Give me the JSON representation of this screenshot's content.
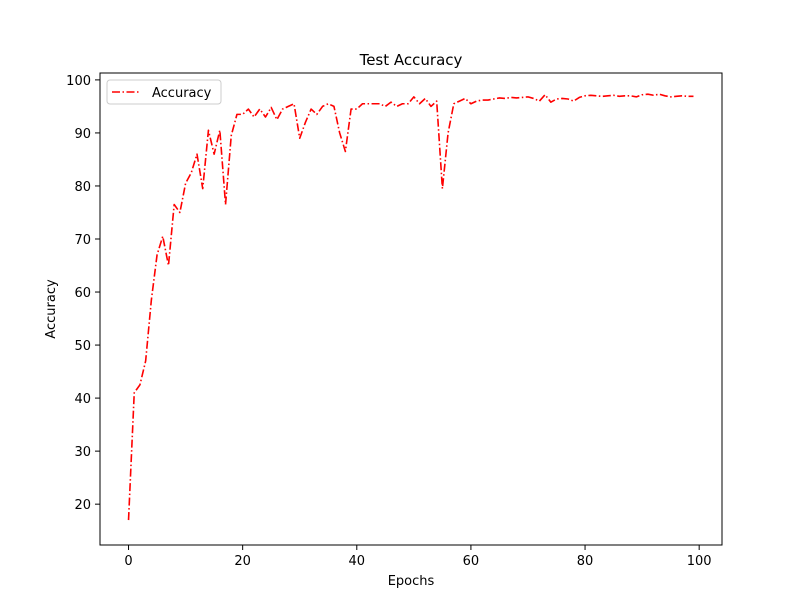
{
  "chart_data": {
    "type": "line",
    "title": "Test Accuracy",
    "xlabel": "Epochs",
    "ylabel": "Accuracy",
    "xlim": [
      -5,
      104
    ],
    "ylim": [
      12.3,
      101.3
    ],
    "xticks": [
      0,
      20,
      40,
      60,
      80,
      100
    ],
    "yticks": [
      20,
      30,
      40,
      50,
      60,
      70,
      80,
      90,
      100
    ],
    "grid": false,
    "legend_position": "upper left",
    "series": [
      {
        "name": "Accuracy",
        "color": "#ff0000",
        "linestyle": "dashdot",
        "x": [
          0,
          1,
          2,
          3,
          4,
          5,
          6,
          7,
          8,
          9,
          10,
          11,
          12,
          13,
          14,
          15,
          16,
          17,
          18,
          19,
          20,
          21,
          22,
          23,
          24,
          25,
          26,
          27,
          28,
          29,
          30,
          31,
          32,
          33,
          34,
          35,
          36,
          37,
          38,
          39,
          40,
          41,
          42,
          43,
          44,
          45,
          46,
          47,
          48,
          49,
          50,
          51,
          52,
          53,
          54,
          55,
          56,
          57,
          58,
          59,
          60,
          61,
          62,
          63,
          64,
          65,
          66,
          67,
          68,
          69,
          70,
          71,
          72,
          73,
          74,
          75,
          76,
          77,
          78,
          79,
          80,
          81,
          82,
          83,
          84,
          85,
          86,
          87,
          88,
          89,
          90,
          91,
          92,
          93,
          94,
          95,
          96,
          97,
          98,
          99
        ],
        "values": [
          17.0,
          41.0,
          42.5,
          47.0,
          58.5,
          67.0,
          70.5,
          65.0,
          76.5,
          75.0,
          80.5,
          82.5,
          86.0,
          79.5,
          90.5,
          86.0,
          90.5,
          76.5,
          89.5,
          93.5,
          93.5,
          94.5,
          93.0,
          94.5,
          93.0,
          94.8,
          92.5,
          94.5,
          95.0,
          95.5,
          89.0,
          92.0,
          94.5,
          93.5,
          95.0,
          95.5,
          95.0,
          90.0,
          86.5,
          94.5,
          94.5,
          95.5,
          95.5,
          95.5,
          95.5,
          95.0,
          95.8,
          95.0,
          95.5,
          95.5,
          96.8,
          95.5,
          96.5,
          95.0,
          96.0,
          79.5,
          90.0,
          95.5,
          96.0,
          96.5,
          95.5,
          96.0,
          96.2,
          96.2,
          96.4,
          96.6,
          96.5,
          96.7,
          96.6,
          96.7,
          96.8,
          96.5,
          96.0,
          97.2,
          95.8,
          96.4,
          96.5,
          96.4,
          96.0,
          96.7,
          97.0,
          97.1,
          97.0,
          96.9,
          97.0,
          97.1,
          96.9,
          97.0,
          97.0,
          96.8,
          97.2,
          97.3,
          97.1,
          97.3,
          97.0,
          96.8,
          96.9,
          97.0,
          96.9,
          96.9
        ]
      }
    ]
  }
}
